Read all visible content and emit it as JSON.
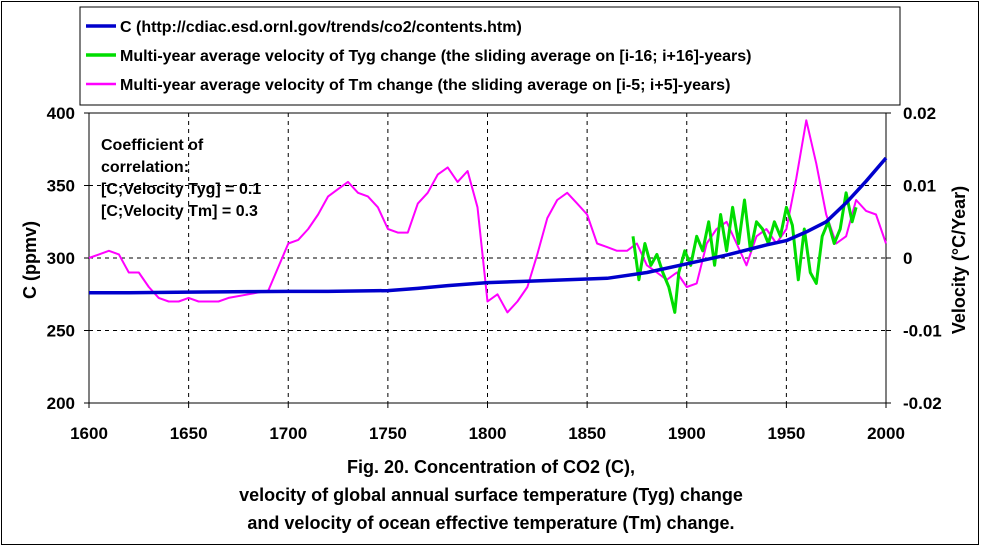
{
  "chart_data": {
    "type": "line",
    "caption": [
      "Fig. 20. Concentration of CO2 (C),",
      "velocity of global annual surface temperature (Tyg) change",
      "and velocity of ocean effective temperature (Tm) change."
    ],
    "xlabel": "",
    "ylabel_left": "C (ppmv)",
    "ylabel_right": "Velocity (°C/Year)",
    "xlim": [
      1600,
      2000
    ],
    "ylim_left": [
      200,
      400
    ],
    "ylim_right": [
      -0.02,
      0.02
    ],
    "x_ticks": [
      "1600",
      "1650",
      "1700",
      "1750",
      "1800",
      "1850",
      "1900",
      "1950",
      "2000"
    ],
    "y_left_ticks": [
      "200",
      "250",
      "300",
      "350",
      "400"
    ],
    "y_right_ticks": [
      "-0.02",
      "-0.01",
      "0",
      "0.01",
      "0.02"
    ],
    "grid": true,
    "legend_position": "top",
    "annotation": [
      "Coefficient of",
      "correlation:",
      "[C;Velocity Tyg] = 0.1",
      "[C;Velocity Tm] = 0.3"
    ],
    "series": [
      {
        "name": "C (http://cdiac.esd.ornl.gov/trends/co2/contents.htm)",
        "axis": "left",
        "color": "#0000cc",
        "x": [
          1600,
          1620,
          1650,
          1680,
          1700,
          1720,
          1750,
          1765,
          1780,
          1800,
          1820,
          1840,
          1860,
          1880,
          1900,
          1920,
          1940,
          1950,
          1960,
          1970,
          1980,
          1990,
          2000
        ],
        "y": [
          276,
          276,
          276.5,
          276.8,
          277,
          277,
          277.5,
          279,
          281,
          283,
          284,
          285,
          286,
          290,
          296,
          302,
          309,
          312,
          318,
          325,
          338,
          353,
          369
        ]
      },
      {
        "name": "Multi-year average velocity of Tyg change (the sliding average on [i-16; i+16]-years)",
        "axis": "right",
        "color": "#00dd00",
        "x": [
          1873,
          1876,
          1879,
          1882,
          1885,
          1888,
          1891,
          1894,
          1896,
          1899,
          1902,
          1905,
          1908,
          1911,
          1914,
          1917,
          1920,
          1923,
          1926,
          1929,
          1932,
          1935,
          1938,
          1941,
          1944,
          1947,
          1950,
          1953,
          1956,
          1959,
          1962,
          1965,
          1968,
          1971,
          1974,
          1977,
          1980,
          1983,
          1985
        ],
        "y": [
          0.003,
          -0.003,
          0.002,
          -0.001,
          0.0005,
          -0.002,
          -0.004,
          -0.0075,
          -0.002,
          0.001,
          -0.001,
          0.003,
          0.001,
          0.005,
          -0.001,
          0.006,
          0.001,
          0.007,
          0.002,
          0.008,
          0.001,
          0.005,
          0.004,
          0.002,
          0.005,
          0.003,
          0.007,
          0.0045,
          -0.003,
          0.004,
          -0.002,
          -0.0035,
          0.003,
          0.005,
          0.002,
          0.004,
          0.009,
          0.005,
          0.007
        ]
      },
      {
        "name": "Multi-year average velocity of Tm change (the sliding average on [i-5; i+5]-years)",
        "axis": "right",
        "color": "#ff00ff",
        "x": [
          1600,
          1605,
          1610,
          1615,
          1620,
          1625,
          1630,
          1635,
          1640,
          1645,
          1650,
          1655,
          1660,
          1665,
          1670,
          1680,
          1690,
          1700,
          1705,
          1710,
          1715,
          1720,
          1725,
          1730,
          1735,
          1740,
          1745,
          1750,
          1755,
          1760,
          1765,
          1770,
          1775,
          1780,
          1785,
          1790,
          1795,
          1800,
          1805,
          1810,
          1815,
          1820,
          1825,
          1830,
          1835,
          1840,
          1845,
          1850,
          1855,
          1860,
          1865,
          1870,
          1875,
          1880,
          1885,
          1890,
          1895,
          1900,
          1905,
          1910,
          1915,
          1920,
          1925,
          1930,
          1935,
          1940,
          1945,
          1950,
          1955,
          1960,
          1965,
          1970,
          1975,
          1980,
          1985,
          1990,
          1995,
          2000
        ],
        "y": [
          0.0,
          0.0005,
          0.001,
          0.0005,
          -0.002,
          -0.002,
          -0.004,
          -0.0055,
          -0.006,
          -0.006,
          -0.0055,
          -0.006,
          -0.006,
          -0.006,
          -0.0055,
          -0.005,
          -0.0045,
          0.002,
          0.0025,
          0.004,
          0.006,
          0.0085,
          0.0095,
          0.0105,
          0.009,
          0.0085,
          0.007,
          0.004,
          0.0035,
          0.0035,
          0.0075,
          0.009,
          0.0115,
          0.0125,
          0.0105,
          0.012,
          0.007,
          -0.006,
          -0.005,
          -0.0075,
          -0.006,
          -0.004,
          0.0005,
          0.0055,
          0.008,
          0.009,
          0.0075,
          0.006,
          0.002,
          0.0015,
          0.001,
          0.001,
          0.002,
          -0.001,
          -0.002,
          -0.003,
          -0.002,
          -0.004,
          -0.0035,
          0.002,
          0.004,
          0.005,
          0.002,
          -0.001,
          0.003,
          0.004,
          0.002,
          0.004,
          0.011,
          0.019,
          0.013,
          0.006,
          0.002,
          0.003,
          0.008,
          0.0065,
          0.006,
          0.002
        ]
      }
    ]
  }
}
